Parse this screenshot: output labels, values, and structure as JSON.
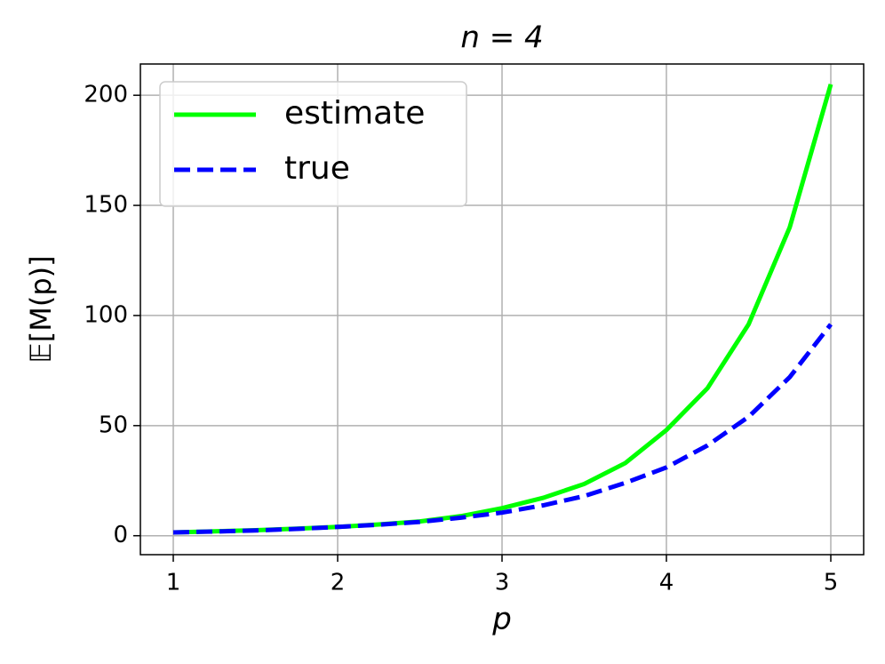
{
  "chart_data": {
    "type": "line",
    "title": "n = 4",
    "x_label": "p",
    "y_label": "𝔼[M(p)]",
    "x": [
      1,
      1.25,
      1.5,
      1.75,
      2,
      2.25,
      2.5,
      2.75,
      3,
      3.25,
      3.5,
      3.75,
      4,
      4.25,
      4.5,
      4.75,
      5
    ],
    "series": [
      {
        "name": "estimate",
        "color": "#00ff00",
        "dash": false,
        "values": [
          1.5,
          2.0,
          2.5,
          3.2,
          4.0,
          5.1,
          6.5,
          8.9,
          12.5,
          17.2,
          23.5,
          33,
          48,
          67,
          96,
          140,
          205
        ]
      },
      {
        "name": "true",
        "color": "#0000ff",
        "dash": true,
        "values": [
          1.5,
          1.9,
          2.4,
          3.1,
          4.0,
          5.0,
          6.3,
          8.2,
          10.5,
          13.8,
          18,
          24,
          31,
          41,
          54,
          72,
          96
        ]
      }
    ],
    "xlim": [
      0.8,
      5.2
    ],
    "xticks": [
      1,
      2,
      3,
      4,
      5
    ],
    "ylim": [
      -8.6,
      214.2
    ],
    "yticks": [
      0,
      50,
      100,
      150,
      200
    ],
    "grid": true,
    "legend": "upper left"
  }
}
